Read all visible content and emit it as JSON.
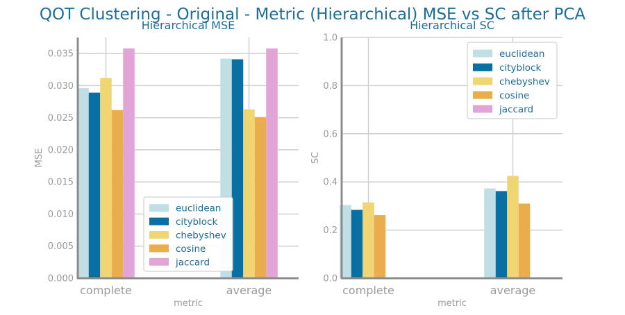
{
  "suptitle": "QOT Clustering - Original - Metric (Hierarchical) MSE vs SC after PCA",
  "chart_data": [
    {
      "type": "bar",
      "title": "Hierarchical MSE",
      "xlabel": "metric",
      "ylabel": "MSE",
      "categories": [
        "complete",
        "average"
      ],
      "ylim": [
        0,
        0.0375
      ],
      "yticks": [
        "0.000",
        "0.005",
        "0.010",
        "0.015",
        "0.020",
        "0.025",
        "0.030",
        "0.035"
      ],
      "ytick_values": [
        0,
        0.005,
        0.01,
        0.015,
        0.02,
        0.025,
        0.03,
        0.035
      ],
      "grid": true,
      "legend_position": "lower-right",
      "series": [
        {
          "name": "euclidean",
          "color": "#bfdfe4",
          "values": [
            0.0296,
            0.0342
          ]
        },
        {
          "name": "cityblock",
          "color": "#0a6fa3",
          "values": [
            0.0289,
            0.0341
          ]
        },
        {
          "name": "chebyshev",
          "color": "#f0d672",
          "values": [
            0.0312,
            0.0263
          ]
        },
        {
          "name": "cosine",
          "color": "#eaad4b",
          "values": [
            0.0262,
            0.0251
          ]
        },
        {
          "name": "jaccard",
          "color": "#e2a4d6",
          "values": [
            0.0358,
            0.0358
          ]
        }
      ]
    },
    {
      "type": "bar",
      "title": "Hierarchical SC",
      "xlabel": "metric",
      "ylabel": "SC",
      "categories": [
        "complete",
        "average"
      ],
      "ylim": [
        0,
        1.0
      ],
      "yticks": [
        "0.0",
        "0.2",
        "0.4",
        "0.6",
        "0.8",
        "1.0"
      ],
      "ytick_values": [
        0,
        0.2,
        0.4,
        0.6,
        0.8,
        1.0
      ],
      "grid": true,
      "legend_position": "upper-right",
      "series": [
        {
          "name": "euclidean",
          "color": "#bfdfe4",
          "values": [
            0.304,
            0.373
          ]
        },
        {
          "name": "cityblock",
          "color": "#0a6fa3",
          "values": [
            0.284,
            0.362
          ]
        },
        {
          "name": "chebyshev",
          "color": "#f0d672",
          "values": [
            0.315,
            0.425
          ]
        },
        {
          "name": "cosine",
          "color": "#eaad4b",
          "values": [
            0.262,
            0.31
          ]
        },
        {
          "name": "jaccard",
          "color": "#e2a4d6",
          "values": [
            null,
            null
          ]
        }
      ]
    }
  ]
}
